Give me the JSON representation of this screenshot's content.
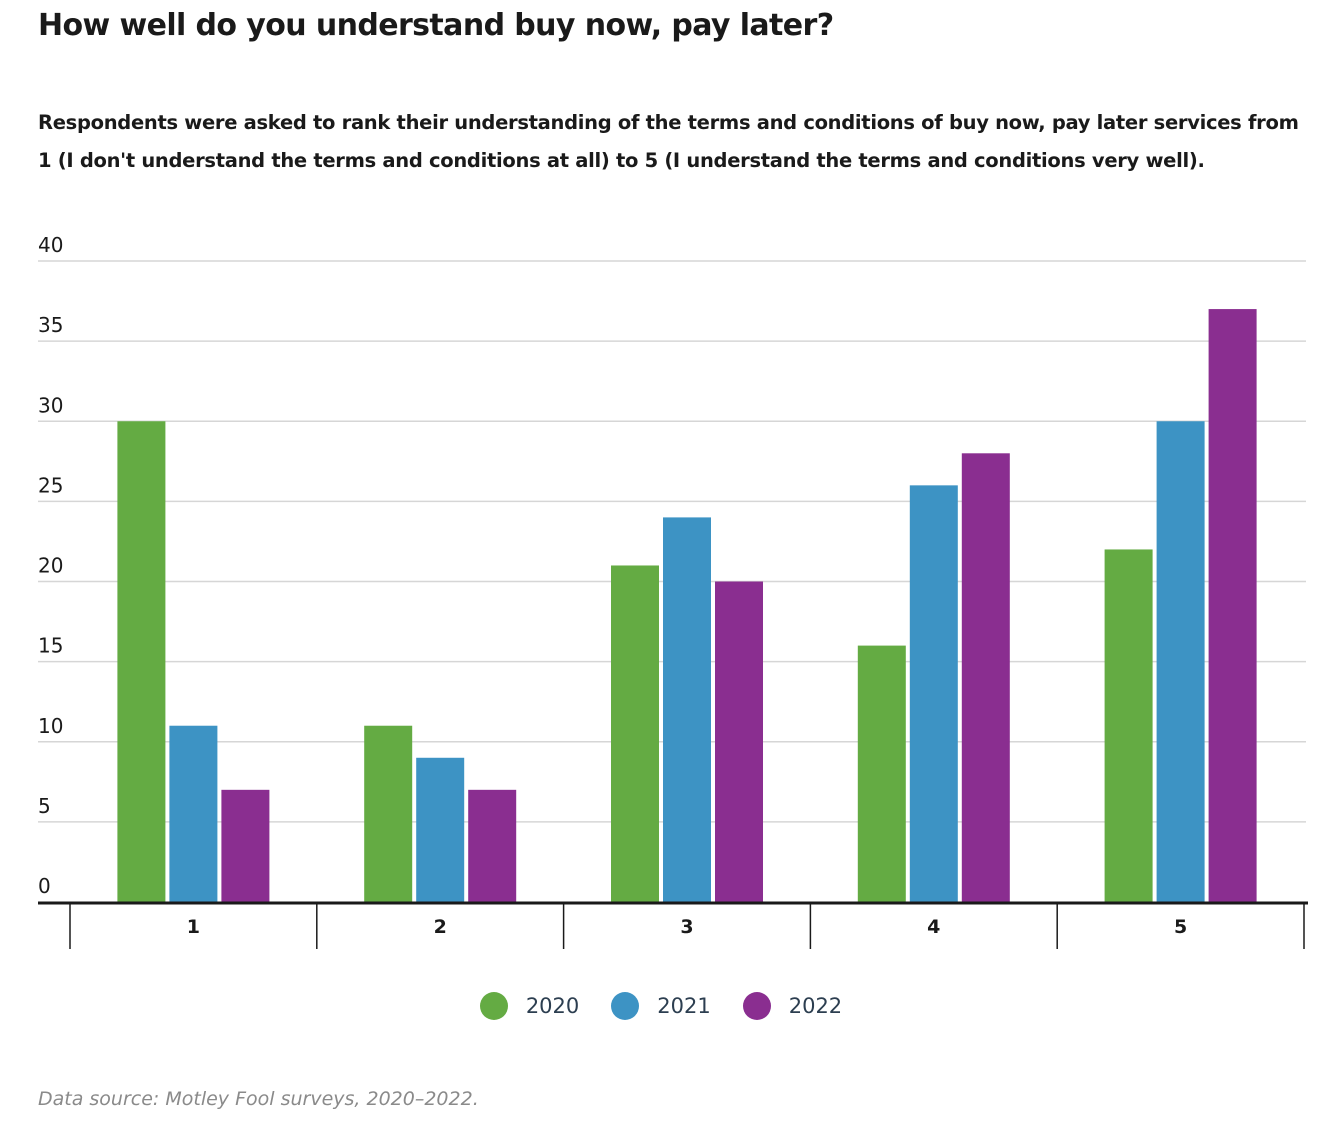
{
  "title": "How well do you understand buy now, pay later?",
  "subtitle": "Respondents were asked to rank their understanding of the terms and conditions of buy now, pay later services from 1 (I don't understand the terms and conditions at all) to 5 (I understand the terms and conditions very well).",
  "source": "Data source: Motley Fool surveys, 2020–2022.",
  "chart_data": {
    "type": "bar",
    "title": "How well do you understand buy now, pay later?",
    "xlabel": "",
    "ylabel": "",
    "categories": [
      "1",
      "2",
      "3",
      "4",
      "5"
    ],
    "series": [
      {
        "name": "2020",
        "color": "#64ab43",
        "values": [
          30,
          11,
          21,
          16,
          22
        ]
      },
      {
        "name": "2021",
        "color": "#3d93c4",
        "values": [
          11,
          9,
          24,
          26,
          30
        ]
      },
      {
        "name": "2022",
        "color": "#8a2e90",
        "values": [
          7,
          7,
          20,
          28,
          37
        ]
      }
    ],
    "ylim": [
      0,
      40
    ],
    "yticks": [
      0,
      5,
      10,
      15,
      20,
      25,
      30,
      35,
      40
    ],
    "grid": true,
    "legend_position": "bottom-center"
  }
}
